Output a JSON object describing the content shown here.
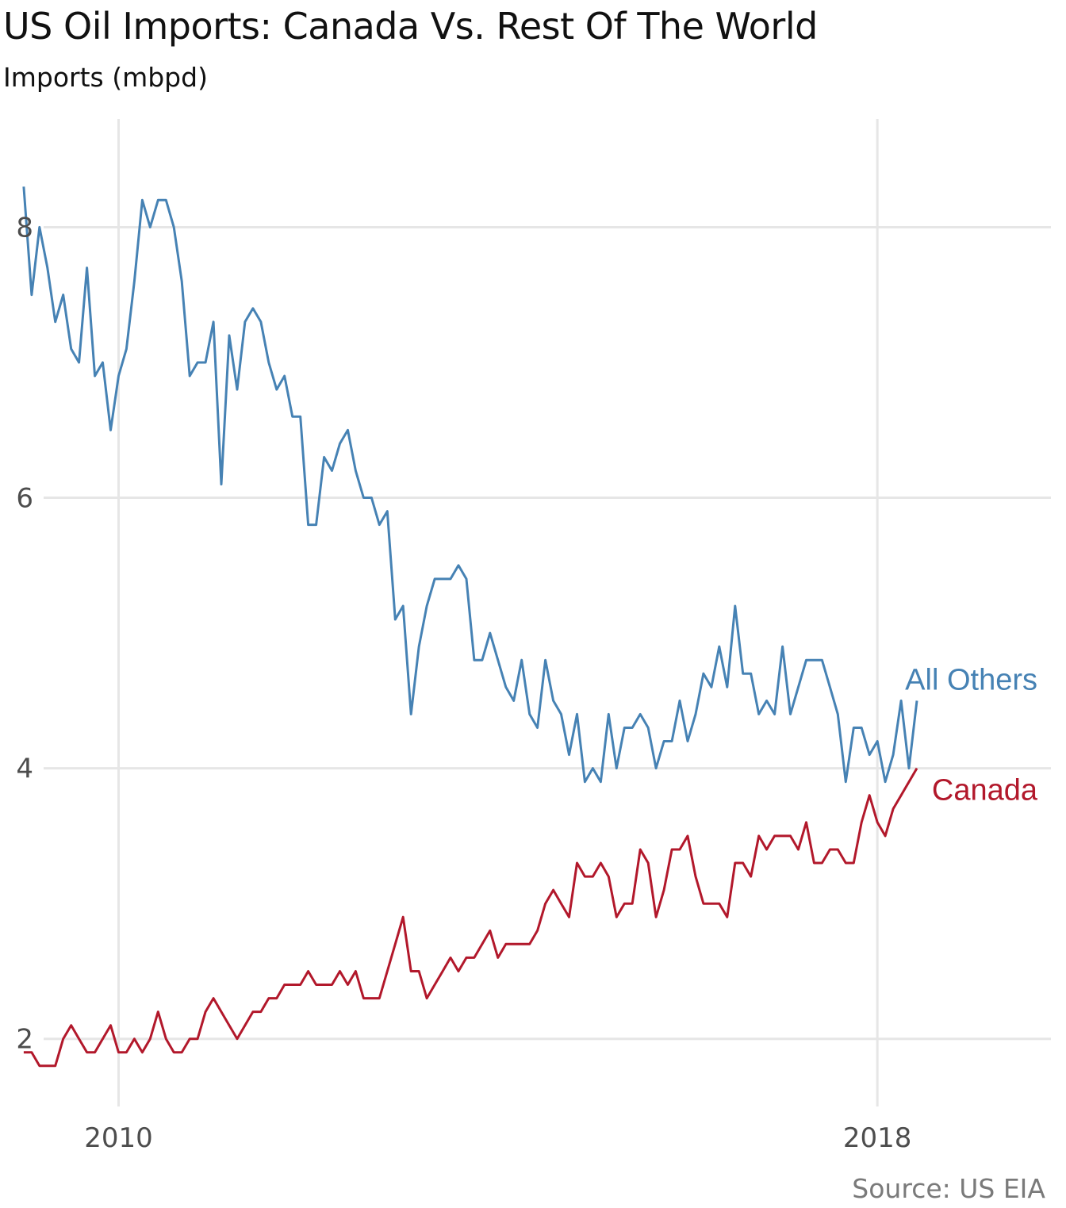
{
  "chart_data": {
    "type": "line",
    "title": "US Oil Imports: Canada Vs. Rest Of The World",
    "subtitle": "Imports (mbpd)",
    "caption": "Source: US EIA",
    "xlabel": "",
    "ylabel": "",
    "x_start": "2009-01",
    "x_frequency": "monthly",
    "xlim": [
      2009.21,
      2019.83
    ],
    "ylim": [
      1.5,
      8.8
    ],
    "x_ticks": [
      2010,
      2018
    ],
    "x_tick_labels": [
      "2010",
      "2018"
    ],
    "y_ticks": [
      2,
      4,
      6,
      8
    ],
    "y_tick_labels": [
      "2",
      "4",
      "6",
      "8"
    ],
    "grid": true,
    "legend": "direct-labels-at-line-end",
    "series": [
      {
        "name": "All Others",
        "color": "#4682b4",
        "values": [
          8.3,
          7.5,
          8.0,
          7.7,
          7.3,
          7.5,
          7.1,
          7.0,
          7.7,
          6.9,
          7.0,
          6.5,
          6.9,
          7.1,
          7.6,
          8.2,
          8.0,
          8.2,
          8.2,
          8.0,
          7.6,
          6.9,
          7.0,
          7.0,
          7.3,
          6.1,
          7.2,
          6.8,
          7.3,
          7.4,
          7.3,
          7.0,
          6.8,
          6.9,
          6.6,
          6.6,
          5.8,
          5.8,
          6.3,
          6.2,
          6.4,
          6.5,
          6.2,
          6.0,
          6.0,
          5.8,
          5.9,
          5.1,
          5.2,
          4.4,
          4.9,
          5.2,
          5.4,
          5.4,
          5.4,
          5.5,
          5.4,
          4.8,
          4.8,
          5.0,
          4.8,
          4.6,
          4.5,
          4.8,
          4.4,
          4.3,
          4.8,
          4.5,
          4.4,
          4.1,
          4.4,
          3.9,
          4.0,
          3.9,
          4.4,
          4.0,
          4.3,
          4.3,
          4.4,
          4.3,
          4.0,
          4.2,
          4.2,
          4.5,
          4.2,
          4.4,
          4.7,
          4.6,
          4.9,
          4.6,
          5.2,
          4.7,
          4.7,
          4.4,
          4.5,
          4.4,
          4.9,
          4.4,
          4.6,
          4.8,
          4.8,
          4.8,
          4.6,
          4.4,
          3.9,
          4.3,
          4.3,
          4.1,
          4.2,
          3.9,
          4.1,
          4.5,
          4.0,
          4.5
        ]
      },
      {
        "name": "Canada",
        "color": "#b2182b",
        "values": [
          1.9,
          1.9,
          1.8,
          1.8,
          1.8,
          2.0,
          2.1,
          2.0,
          1.9,
          1.9,
          2.0,
          2.1,
          1.9,
          1.9,
          2.0,
          1.9,
          2.0,
          2.2,
          2.0,
          1.9,
          1.9,
          2.0,
          2.0,
          2.2,
          2.3,
          2.2,
          2.1,
          2.0,
          2.1,
          2.2,
          2.2,
          2.3,
          2.3,
          2.4,
          2.4,
          2.4,
          2.5,
          2.4,
          2.4,
          2.4,
          2.5,
          2.4,
          2.5,
          2.3,
          2.3,
          2.3,
          2.5,
          2.7,
          2.9,
          2.5,
          2.5,
          2.3,
          2.4,
          2.5,
          2.6,
          2.5,
          2.6,
          2.6,
          2.7,
          2.8,
          2.6,
          2.7,
          2.7,
          2.7,
          2.7,
          2.8,
          3.0,
          3.1,
          3.0,
          2.9,
          3.3,
          3.2,
          3.2,
          3.3,
          3.2,
          2.9,
          3.0,
          3.0,
          3.4,
          3.3,
          2.9,
          3.1,
          3.4,
          3.4,
          3.5,
          3.2,
          3.0,
          3.0,
          3.0,
          2.9,
          3.3,
          3.3,
          3.2,
          3.5,
          3.4,
          3.5,
          3.5,
          3.5,
          3.4,
          3.6,
          3.3,
          3.3,
          3.4,
          3.4,
          3.3,
          3.3,
          3.6,
          3.8,
          3.6,
          3.5,
          3.7,
          3.8,
          3.9,
          4.0
        ]
      }
    ]
  }
}
